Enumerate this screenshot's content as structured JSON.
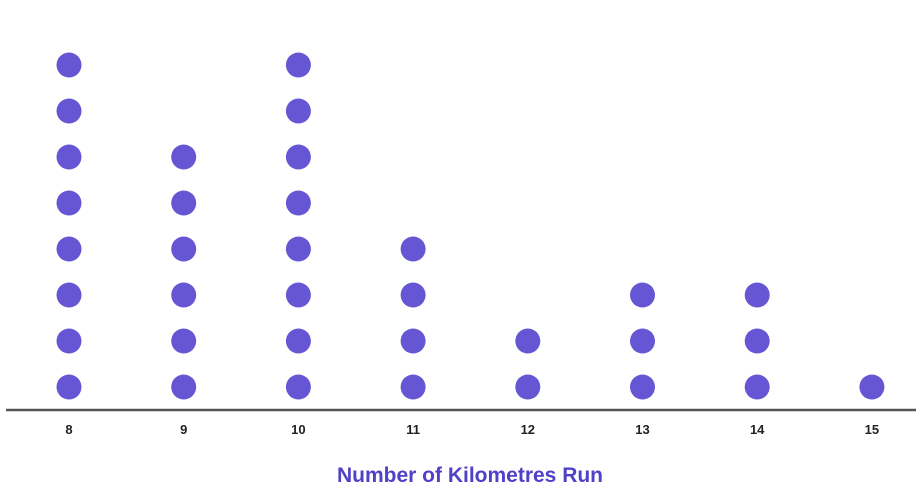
{
  "chart_data": {
    "type": "scatter",
    "subtype": "dot-plot",
    "title": "",
    "xlabel": "Number of Kilometres Run",
    "ylabel": "",
    "x": [
      8,
      9,
      10,
      11,
      12,
      13,
      14,
      15
    ],
    "tick_labels": [
      "8",
      "9",
      "10",
      "11",
      "12",
      "13",
      "14",
      "15"
    ],
    "counts": [
      8,
      6,
      8,
      4,
      2,
      3,
      3,
      1
    ],
    "xlim": [
      8,
      15
    ],
    "grid": false,
    "legend": "none"
  },
  "colors": {
    "dot": "#6656D4",
    "axis_line": "#555555",
    "axis_title": "#5140C8",
    "tick_text": "#222222"
  }
}
